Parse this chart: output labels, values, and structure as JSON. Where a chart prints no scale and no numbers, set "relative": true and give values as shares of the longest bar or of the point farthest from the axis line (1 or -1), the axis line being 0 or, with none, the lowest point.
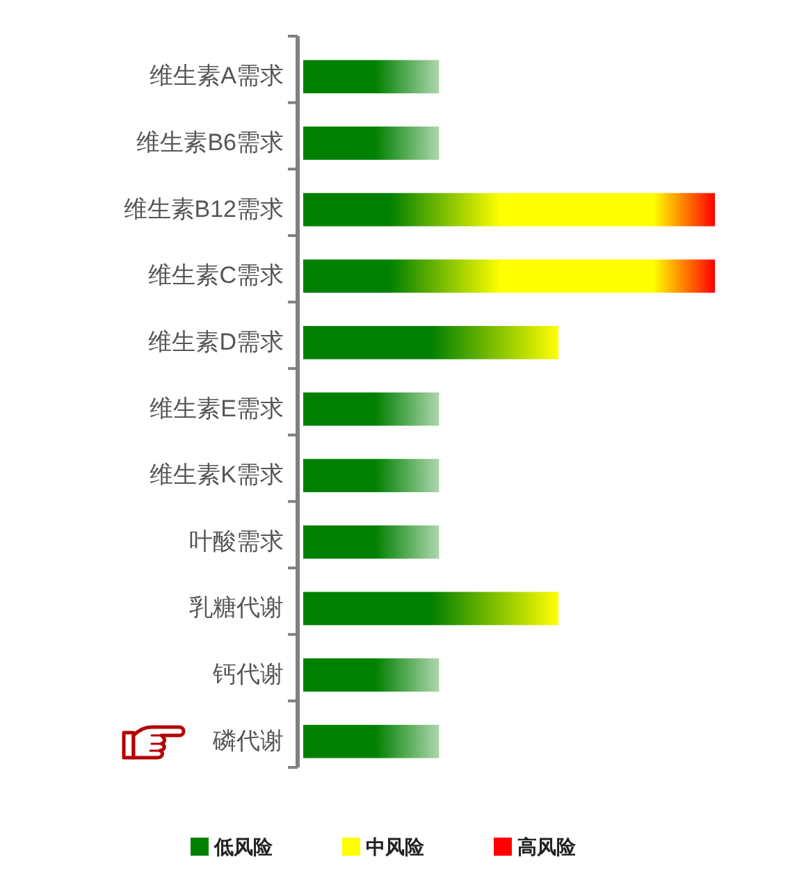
{
  "chart_data": {
    "type": "bar",
    "orientation": "horizontal",
    "relative": true,
    "legend": "bottom",
    "categories": [
      "维生素A需求",
      "维生素B6需求",
      "维生素B12需求",
      "维生素C需求",
      "维生素D需求",
      "维生素E需求",
      "维生素K需求",
      "叶酸需求",
      "乳糖代谢",
      "钙代谢",
      "磷代谢"
    ],
    "series": [
      {
        "name": "低风险",
        "color": "#008000",
        "values": [
          0.33,
          0.33,
          null,
          null,
          null,
          0.33,
          0.33,
          0.33,
          null,
          0.33,
          0.33
        ]
      },
      {
        "name": "中风险",
        "color": "#ffff00",
        "values": [
          null,
          null,
          null,
          null,
          0.62,
          null,
          null,
          null,
          0.62,
          null,
          null
        ]
      },
      {
        "name": "高风险",
        "color": "#ff0000",
        "values": [
          null,
          null,
          1,
          1,
          null,
          null,
          null,
          null,
          null,
          null,
          null
        ]
      }
    ]
  }
}
